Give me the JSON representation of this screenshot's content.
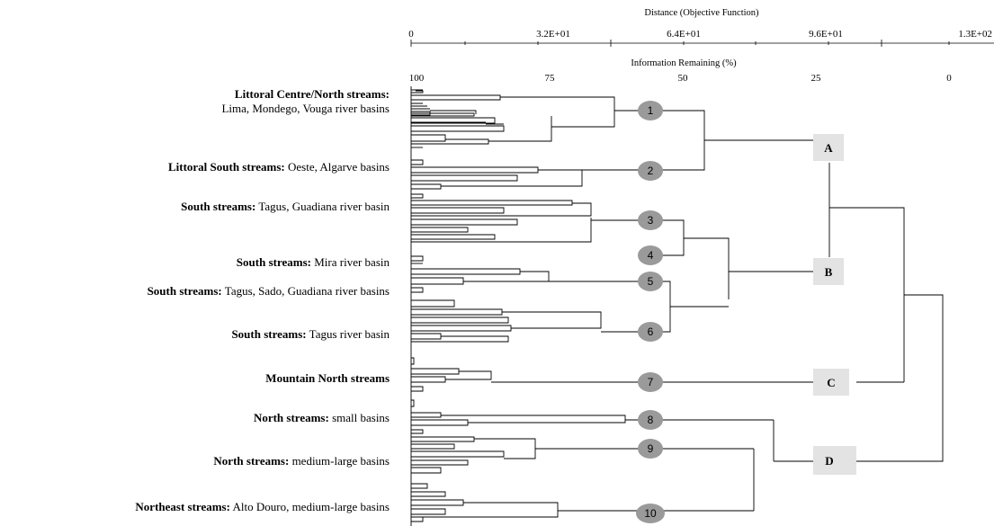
{
  "axes": {
    "distance": {
      "title": "Distance (Objective Function)",
      "ticks": [
        "0",
        "3.2E+01",
        "6.4E+01",
        "9.6E+01",
        "1.3E+02"
      ]
    },
    "information": {
      "title": "Information Remaining (%)",
      "ticks": [
        "100",
        "75",
        "50",
        "25",
        "0"
      ]
    }
  },
  "groups": [
    {
      "bold": "Littoral Centre/North streams:",
      "rest": "",
      "line2": "Lima, Mondego, Vouga river basins"
    },
    {
      "bold": "Littoral South streams:",
      "rest": " Oeste, Algarve basins",
      "line2": ""
    },
    {
      "bold": "South streams:",
      "rest": " Tagus, Guadiana river basin",
      "line2": ""
    },
    {
      "bold": "South streams:",
      "rest": " Mira river basin",
      "line2": ""
    },
    {
      "bold": "South streams:",
      "rest": " Tagus, Sado, Guadiana river basins",
      "line2": ""
    },
    {
      "bold": "South streams:",
      "rest": " Tagus river basin",
      "line2": ""
    },
    {
      "bold": "Mountain North streams",
      "rest": "",
      "line2": ""
    },
    {
      "bold": "North streams:",
      "rest": " small basins",
      "line2": ""
    },
    {
      "bold": "North streams:",
      "rest": " medium-large basins",
      "line2": ""
    },
    {
      "bold": "Northeast streams:",
      "rest": " Alto Douro, medium-large basins",
      "line2": ""
    }
  ],
  "nodes": [
    "1",
    "2",
    "3",
    "4",
    "5",
    "6",
    "7",
    "8",
    "9",
    "10"
  ],
  "clusters": [
    "A",
    "B",
    "C",
    "D"
  ],
  "colors": {
    "node_fill": "#9a9a9a",
    "cluster_fill": "#e3e3e3",
    "line": "#000000"
  }
}
